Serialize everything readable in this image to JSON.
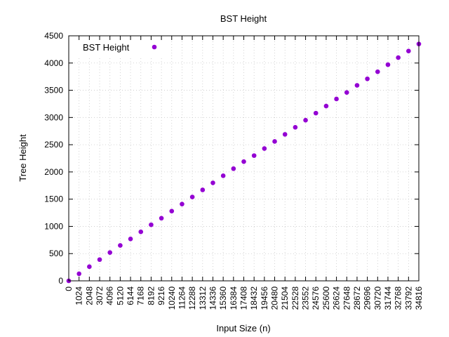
{
  "chart_data": {
    "type": "scatter",
    "title": "BST Height",
    "xlabel": "Input Size (n)",
    "ylabel": "Tree Height",
    "xlim": [
      0,
      34816
    ],
    "ylim": [
      0,
      4500
    ],
    "x_ticks": [
      0,
      1024,
      2048,
      3072,
      4096,
      5120,
      6144,
      7168,
      8192,
      9216,
      10240,
      11264,
      12288,
      13312,
      14336,
      15360,
      16384,
      17408,
      18432,
      19456,
      20480,
      21504,
      22528,
      23552,
      24576,
      25600,
      26624,
      27648,
      28672,
      29696,
      30720,
      31744,
      32768,
      33792,
      34816
    ],
    "y_ticks": [
      0,
      500,
      1000,
      1500,
      2000,
      2500,
      3000,
      3500,
      4000,
      4500
    ],
    "grid": true,
    "legend_position": "top-left",
    "series": [
      {
        "name": "BST Height",
        "color": "#9400d3",
        "points": [
          [
            0,
            0
          ],
          [
            1024,
            130
          ],
          [
            2048,
            260
          ],
          [
            3072,
            390
          ],
          [
            4096,
            520
          ],
          [
            5120,
            650
          ],
          [
            6144,
            770
          ],
          [
            7168,
            900
          ],
          [
            8192,
            1030
          ],
          [
            9216,
            1150
          ],
          [
            10240,
            1280
          ],
          [
            11264,
            1410
          ],
          [
            12288,
            1540
          ],
          [
            13312,
            1670
          ],
          [
            14336,
            1800
          ],
          [
            15360,
            1930
          ],
          [
            16384,
            2060
          ],
          [
            17408,
            2190
          ],
          [
            18432,
            2300
          ],
          [
            19456,
            2430
          ],
          [
            20480,
            2560
          ],
          [
            21504,
            2690
          ],
          [
            22528,
            2820
          ],
          [
            23552,
            2950
          ],
          [
            24576,
            3080
          ],
          [
            25600,
            3210
          ],
          [
            26624,
            3340
          ],
          [
            27648,
            3460
          ],
          [
            28672,
            3590
          ],
          [
            29696,
            3710
          ],
          [
            30720,
            3840
          ],
          [
            31744,
            3970
          ],
          [
            32768,
            4100
          ],
          [
            33792,
            4220
          ],
          [
            34816,
            4350
          ]
        ]
      }
    ]
  }
}
